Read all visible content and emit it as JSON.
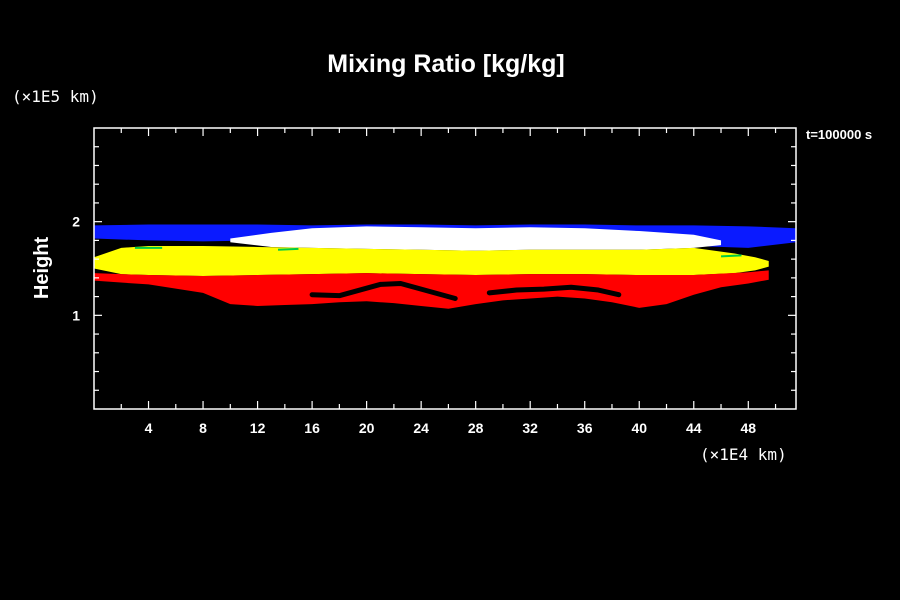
{
  "chart_data": {
    "type": "heatmap",
    "title": "Mixing Ratio [kg/kg]",
    "ylabel": "Height",
    "y_unit": "(×1E5 km)",
    "x_unit": "(×1E4 km)",
    "time_label": "t=100000 s",
    "xlim": [
      0,
      51.5
    ],
    "ylim": [
      0,
      3
    ],
    "x_ticks": [
      4,
      8,
      12,
      16,
      20,
      24,
      28,
      32,
      36,
      40,
      44,
      48
    ],
    "y_ticks": [
      1,
      2
    ],
    "grid": false,
    "colors": {
      "background": "#000000",
      "axes": "#ffffff",
      "band_blue": "#0a1aff",
      "band_white": "#ffffff",
      "band_yellow": "#ffff00",
      "band_red": "#ff0000",
      "core_black": "#000000",
      "trace_green": "#00cc44"
    },
    "bands": [
      {
        "name": "band-blue",
        "color": "#0a1aff",
        "top": [
          [
            0,
            1.96
          ],
          [
            4,
            1.97
          ],
          [
            8,
            1.97
          ],
          [
            12,
            1.97
          ],
          [
            16,
            1.96
          ],
          [
            20,
            1.97
          ],
          [
            24,
            1.97
          ],
          [
            28,
            1.96
          ],
          [
            32,
            1.97
          ],
          [
            36,
            1.97
          ],
          [
            40,
            1.96
          ],
          [
            44,
            1.96
          ],
          [
            48,
            1.95
          ],
          [
            51.5,
            1.93
          ]
        ],
        "bottom": [
          [
            0,
            1.82
          ],
          [
            4,
            1.8
          ],
          [
            8,
            1.79
          ],
          [
            12,
            1.8
          ],
          [
            16,
            1.8
          ],
          [
            20,
            1.79
          ],
          [
            24,
            1.78
          ],
          [
            28,
            1.8
          ],
          [
            32,
            1.8
          ],
          [
            36,
            1.8
          ],
          [
            40,
            1.78
          ],
          [
            44,
            1.74
          ],
          [
            48,
            1.72
          ],
          [
            51.5,
            1.78
          ]
        ]
      },
      {
        "name": "band-white",
        "color": "#ffffff",
        "top": [
          [
            10,
            1.82
          ],
          [
            13,
            1.88
          ],
          [
            16,
            1.93
          ],
          [
            20,
            1.95
          ],
          [
            24,
            1.94
          ],
          [
            28,
            1.93
          ],
          [
            32,
            1.94
          ],
          [
            36,
            1.93
          ],
          [
            40,
            1.9
          ],
          [
            44,
            1.86
          ],
          [
            46,
            1.8
          ]
        ],
        "bottom": [
          [
            10,
            1.78
          ],
          [
            13,
            1.73
          ],
          [
            16,
            1.72
          ],
          [
            20,
            1.71
          ],
          [
            24,
            1.7
          ],
          [
            28,
            1.69
          ],
          [
            32,
            1.7
          ],
          [
            36,
            1.7
          ],
          [
            40,
            1.7
          ],
          [
            44,
            1.72
          ],
          [
            46,
            1.75
          ]
        ]
      },
      {
        "name": "band-yellow",
        "color": "#ffff00",
        "top": [
          [
            0,
            1.62
          ],
          [
            2,
            1.72
          ],
          [
            4,
            1.74
          ],
          [
            8,
            1.74
          ],
          [
            12,
            1.73
          ],
          [
            16,
            1.72
          ],
          [
            20,
            1.71
          ],
          [
            24,
            1.7
          ],
          [
            28,
            1.69
          ],
          [
            32,
            1.7
          ],
          [
            36,
            1.7
          ],
          [
            40,
            1.7
          ],
          [
            44,
            1.72
          ],
          [
            47,
            1.66
          ],
          [
            48.5,
            1.62
          ],
          [
            49.5,
            1.58
          ]
        ],
        "bottom": [
          [
            0,
            1.5
          ],
          [
            2,
            1.44
          ],
          [
            4,
            1.43
          ],
          [
            8,
            1.42
          ],
          [
            12,
            1.43
          ],
          [
            16,
            1.44
          ],
          [
            20,
            1.45
          ],
          [
            24,
            1.44
          ],
          [
            28,
            1.43
          ],
          [
            32,
            1.44
          ],
          [
            36,
            1.44
          ],
          [
            40,
            1.43
          ],
          [
            44,
            1.43
          ],
          [
            47,
            1.45
          ],
          [
            48.5,
            1.48
          ],
          [
            49.5,
            1.52
          ]
        ]
      },
      {
        "name": "band-red",
        "color": "#ff0000",
        "top": [
          [
            0,
            1.45
          ],
          [
            4,
            1.43
          ],
          [
            8,
            1.42
          ],
          [
            12,
            1.43
          ],
          [
            16,
            1.44
          ],
          [
            20,
            1.45
          ],
          [
            24,
            1.44
          ],
          [
            28,
            1.43
          ],
          [
            32,
            1.44
          ],
          [
            36,
            1.44
          ],
          [
            40,
            1.43
          ],
          [
            44,
            1.43
          ],
          [
            48,
            1.46
          ],
          [
            49.5,
            1.48
          ]
        ],
        "bottom": [
          [
            0,
            1.37
          ],
          [
            4,
            1.33
          ],
          [
            8,
            1.24
          ],
          [
            10,
            1.12
          ],
          [
            12,
            1.1
          ],
          [
            14,
            1.11
          ],
          [
            16,
            1.12
          ],
          [
            18,
            1.14
          ],
          [
            20,
            1.15
          ],
          [
            22,
            1.13
          ],
          [
            24,
            1.1
          ],
          [
            26,
            1.07
          ],
          [
            28,
            1.12
          ],
          [
            30,
            1.16
          ],
          [
            32,
            1.18
          ],
          [
            34,
            1.2
          ],
          [
            36,
            1.18
          ],
          [
            38,
            1.14
          ],
          [
            40,
            1.08
          ],
          [
            42,
            1.12
          ],
          [
            44,
            1.22
          ],
          [
            46,
            1.3
          ],
          [
            48,
            1.34
          ],
          [
            49.5,
            1.38
          ]
        ]
      }
    ],
    "core_streaks": [
      [
        [
          16,
          1.22
        ],
        [
          18,
          1.21
        ],
        [
          19.5,
          1.27
        ],
        [
          21,
          1.33
        ],
        [
          22.5,
          1.34
        ],
        [
          24,
          1.28
        ],
        [
          25.5,
          1.22
        ],
        [
          26.5,
          1.18
        ]
      ],
      [
        [
          29,
          1.24
        ],
        [
          31,
          1.27
        ],
        [
          33,
          1.28
        ],
        [
          35,
          1.3
        ],
        [
          37,
          1.27
        ],
        [
          38.5,
          1.22
        ]
      ]
    ],
    "green_traces": [
      [
        [
          3,
          1.72
        ],
        [
          5,
          1.72
        ]
      ],
      [
        [
          13.5,
          1.7
        ],
        [
          15,
          1.71
        ]
      ],
      [
        [
          46,
          1.63
        ],
        [
          47.5,
          1.64
        ]
      ]
    ]
  }
}
